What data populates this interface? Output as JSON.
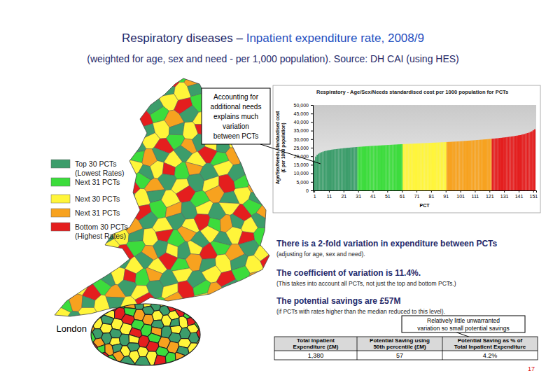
{
  "chart_data": {
    "type": "bar",
    "title": "Respiratory - Age/Sex/Needs standardised cost per 1000 population for PCTs",
    "x_label": "PCT",
    "y_label": [
      "Age/Sex/Needs standardised cost",
      "(£ per 1000 population)"
    ],
    "xlim": [
      0,
      153
    ],
    "xticks": [
      1,
      11,
      21,
      31,
      41,
      51,
      61,
      71,
      81,
      91,
      101,
      111,
      121,
      131,
      141,
      151
    ],
    "ylim": [
      0,
      50000
    ],
    "yticks": [
      {
        "value": 0,
        "label": "0"
      },
      {
        "value": 5000,
        "label": "5,000"
      },
      {
        "value": 10000,
        "label": "10,000"
      },
      {
        "value": 15000,
        "label": "15,000"
      },
      {
        "value": 20000,
        "label": "20,000"
      },
      {
        "value": 25000,
        "label": "25,000"
      },
      {
        "value": 30000,
        "label": "30,000"
      },
      {
        "value": 35000,
        "label": "35,000"
      },
      {
        "value": 40000,
        "label": "40,000"
      },
      {
        "value": 45000,
        "label": "45,000"
      },
      {
        "value": 50000,
        "label": "50,000"
      }
    ],
    "grid": false,
    "series": [
      {
        "name": "Top 30 PCTs (Lowest Rates)",
        "color": "#3c9d6b",
        "x": [
          1,
          2,
          3,
          4,
          5,
          6,
          7,
          8,
          9,
          10,
          11,
          12,
          13,
          14,
          15,
          16,
          17,
          18,
          19,
          20,
          21,
          22,
          23,
          24,
          25,
          26,
          27,
          28,
          29,
          30
        ],
        "values": [
          17500,
          19800,
          20900,
          21500,
          22000,
          22400,
          22700,
          23000,
          23200,
          23400,
          23550,
          23700,
          23850,
          24000,
          24100,
          24200,
          24300,
          24400,
          24500,
          24600,
          24700,
          24780,
          24860,
          24940,
          25020,
          25100,
          25180,
          25260,
          25340,
          25420
        ]
      },
      {
        "name": "Next 31 PCTs",
        "color": "#3cdc3c",
        "x": [
          31,
          32,
          33,
          34,
          35,
          36,
          37,
          38,
          39,
          40,
          41,
          42,
          43,
          44,
          45,
          46,
          47,
          48,
          49,
          50,
          51,
          52,
          53,
          54,
          55,
          56,
          57,
          58,
          59,
          60,
          61
        ],
        "values": [
          25480,
          25540,
          25600,
          25660,
          25720,
          25780,
          25840,
          25900,
          25960,
          26020,
          26070,
          26120,
          26170,
          26220,
          26270,
          26320,
          26370,
          26420,
          26470,
          26520,
          26570,
          26620,
          26670,
          26720,
          26770,
          26820,
          26870,
          26920,
          26970,
          27020,
          27060
        ]
      },
      {
        "name": "Next 30 PCTs",
        "color": "#fff53a",
        "x": [
          62,
          63,
          64,
          65,
          66,
          67,
          68,
          69,
          70,
          71,
          72,
          73,
          74,
          75,
          76,
          77,
          78,
          79,
          80,
          81,
          82,
          83,
          84,
          85,
          86,
          87,
          88,
          89,
          90,
          91
        ],
        "values": [
          27100,
          27140,
          27180,
          27220,
          27260,
          27300,
          27340,
          27380,
          27420,
          27460,
          27500,
          27540,
          27580,
          27620,
          27660,
          27700,
          27740,
          27780,
          27820,
          27860,
          27900,
          27940,
          27980,
          28020,
          28060,
          28100,
          28140,
          28180,
          28220,
          28270
        ]
      },
      {
        "name": "Next 31 PCTs",
        "color": "#f7a21f",
        "x": [
          92,
          93,
          94,
          95,
          96,
          97,
          98,
          99,
          100,
          101,
          102,
          103,
          104,
          105,
          106,
          107,
          108,
          109,
          110,
          111,
          112,
          113,
          114,
          115,
          116,
          117,
          118,
          119,
          120,
          121,
          122
        ],
        "values": [
          28320,
          28370,
          28420,
          28470,
          28520,
          28570,
          28620,
          28670,
          28720,
          28780,
          28840,
          28900,
          28960,
          29020,
          29080,
          29140,
          29200,
          29260,
          29320,
          29390,
          29460,
          29530,
          29600,
          29670,
          29740,
          29810,
          29880,
          29950,
          30020,
          30100,
          30180
        ]
      },
      {
        "name": "Bottom 30 PCTs (Highest Rates)",
        "color": "#e41e1e",
        "x": [
          123,
          124,
          125,
          126,
          127,
          128,
          129,
          130,
          131,
          132,
          133,
          134,
          135,
          136,
          137,
          138,
          139,
          140,
          141,
          142,
          143,
          144,
          145,
          146,
          147,
          148,
          149,
          150,
          151,
          152
        ],
        "values": [
          30260,
          30340,
          30420,
          30500,
          30600,
          30700,
          30800,
          30900,
          31000,
          31100,
          31200,
          31320,
          31440,
          31560,
          31680,
          31800,
          31950,
          32100,
          32250,
          32400,
          32600,
          32800,
          33000,
          33300,
          33600,
          33800,
          34200,
          34600,
          35200,
          35800
        ]
      }
    ]
  },
  "slide": {
    "title": [
      "Respiratory diseases – ",
      "Inpatient expenditure rate, 2008/9"
    ],
    "subtitle": "(weighted for age, sex and need - per 1,000 population). Source: DH CAI (using HES)",
    "callout_needs": [
      "Accounting for",
      "additional needs",
      "explains much",
      "variation",
      "between PCTs"
    ],
    "points": [
      {
        "headline": "There is a 2-fold variation in expenditure between PCTs",
        "note": "(adjusting for age, sex and need)."
      },
      {
        "headline": "The coefficient of variation is 11.4%.",
        "note": "(This takes into account all PCTs, not just the top and bottom PCTs.)"
      },
      {
        "headline": "The potential savings are £57M",
        "note": "(if PCTs with rates higher than the median reduced to this level)."
      }
    ],
    "callout_savings": [
      "Relatively little unwarranted",
      "variation so small potential savings"
    ],
    "table": {
      "header": [
        [
          "Total Inpatient",
          "Expenditure (£M)"
        ],
        [
          "Potential Saving using",
          "50th percentile (£M)"
        ],
        [
          "Potential Saving as % of",
          "Total Inpatient Expenditure"
        ]
      ],
      "rows": [
        [
          "1,380",
          "57",
          "4.2%"
        ]
      ]
    },
    "london_label": "London",
    "page_number": "17"
  }
}
